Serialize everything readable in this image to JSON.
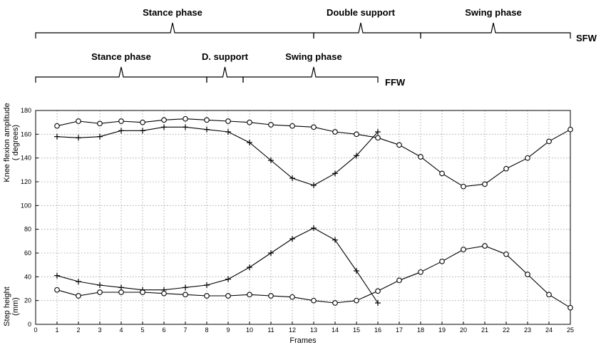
{
  "chart_data": {
    "type": "line",
    "xlabel": "Frames",
    "ylabels": [
      "Knee flexion amplitude",
      "( degrees)",
      "Step height",
      "(mm)"
    ],
    "xlim": [
      0,
      25
    ],
    "ylim": [
      0,
      180
    ],
    "x_ticks": [
      0,
      1,
      2,
      3,
      4,
      5,
      6,
      7,
      8,
      9,
      10,
      11,
      12,
      13,
      14,
      15,
      16,
      17,
      18,
      19,
      20,
      21,
      22,
      23,
      24,
      25
    ],
    "y_ticks": [
      0,
      20,
      40,
      60,
      80,
      100,
      120,
      140,
      160,
      180
    ],
    "grid": true,
    "series": [
      {
        "marker": "circle",
        "x": [
          1,
          2,
          3,
          4,
          5,
          6,
          7,
          8,
          9,
          10,
          11,
          12,
          13,
          14,
          15,
          16,
          17,
          18,
          19,
          20,
          21,
          22,
          23,
          24,
          25
        ],
        "values": [
          167,
          171,
          169,
          171,
          170,
          172,
          173,
          172,
          171,
          170,
          168,
          167,
          166,
          162,
          160,
          157,
          151,
          141,
          127,
          116,
          118,
          131,
          140,
          154,
          164
        ]
      },
      {
        "marker": "plus",
        "x": [
          1,
          2,
          3,
          4,
          5,
          6,
          7,
          8,
          9,
          10,
          11,
          12,
          13,
          14,
          15,
          16
        ],
        "values": [
          158,
          157,
          158,
          163,
          163,
          166,
          166,
          164,
          162,
          153,
          138,
          123,
          117,
          127,
          142,
          162
        ]
      },
      {
        "marker": "plus",
        "x": [
          1,
          2,
          3,
          4,
          5,
          6,
          7,
          8,
          9,
          10,
          11,
          12,
          13,
          14,
          15,
          16
        ],
        "values": [
          41,
          36,
          33,
          31,
          29,
          29,
          31,
          33,
          38,
          48,
          60,
          72,
          81,
          71,
          45,
          18
        ]
      },
      {
        "marker": "circle",
        "x": [
          1,
          2,
          3,
          4,
          5,
          6,
          7,
          8,
          9,
          10,
          11,
          12,
          13,
          14,
          15,
          16,
          17,
          18,
          19,
          20,
          21,
          22,
          23,
          24,
          25
        ],
        "values": [
          29,
          24,
          27,
          27,
          27,
          26,
          25,
          24,
          24,
          25,
          24,
          23,
          20,
          18,
          20,
          28,
          37,
          44,
          53,
          63,
          66,
          59,
          42,
          25,
          14
        ]
      }
    ],
    "annotations": {
      "gait_labels": [
        "SFW",
        "FFW"
      ],
      "phases": [
        {
          "row": "SFW",
          "label": "Stance phase",
          "x_start": 0,
          "x_end": 13,
          "x_peak": 6.4
        },
        {
          "row": "SFW",
          "label": "Double support",
          "x_start": 13,
          "x_end": 18,
          "x_peak": 15.2
        },
        {
          "row": "SFW",
          "label": "Swing phase",
          "x_start": 18,
          "x_end": 25,
          "x_peak": 21.4
        },
        {
          "row": "FFW",
          "label": "Stance phase",
          "x_start": 0,
          "x_end": 8,
          "x_peak": 4
        },
        {
          "row": "FFW",
          "label": "D. support",
          "x_start": 8,
          "x_end": 9.7,
          "x_peak": 8.85
        },
        {
          "row": "FFW",
          "label": "Swing phase",
          "x_start": 9.7,
          "x_end": 16,
          "x_peak": 13
        }
      ]
    }
  }
}
